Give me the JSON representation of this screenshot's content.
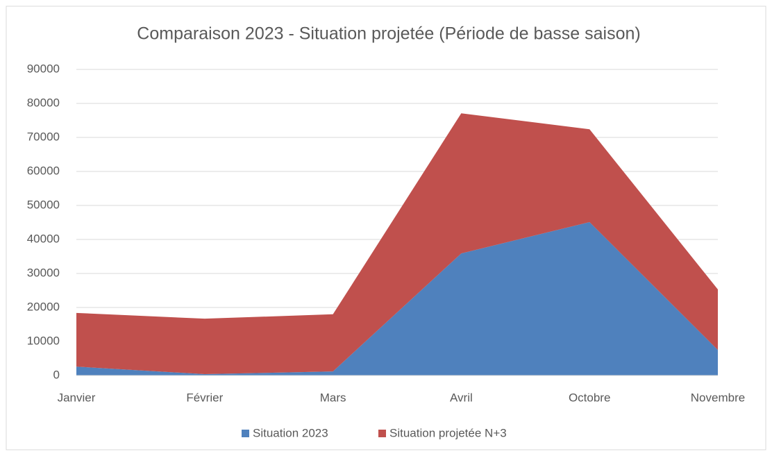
{
  "chart_data": {
    "type": "stacked_area",
    "title": "Comparaison 2023 - Situation projetée (Période de basse saison)",
    "categories": [
      "Janvier",
      "Février",
      "Mars",
      "Avril",
      "Octobre",
      "Novembre"
    ],
    "series": [
      {
        "name": "Situation 2023",
        "color": "#4f81bd",
        "values": [
          2600,
          400,
          1200,
          35900,
          45100,
          7500
        ]
      },
      {
        "name": "Situation projetée N+3",
        "color": "#c0504d",
        "values": [
          15800,
          16300,
          16800,
          41200,
          27300,
          17800
        ]
      }
    ],
    "ylim": [
      0,
      90000
    ],
    "yticks": [
      0,
      10000,
      20000,
      30000,
      40000,
      50000,
      60000,
      70000,
      80000,
      90000
    ],
    "grid": true,
    "legend": "bottom"
  }
}
